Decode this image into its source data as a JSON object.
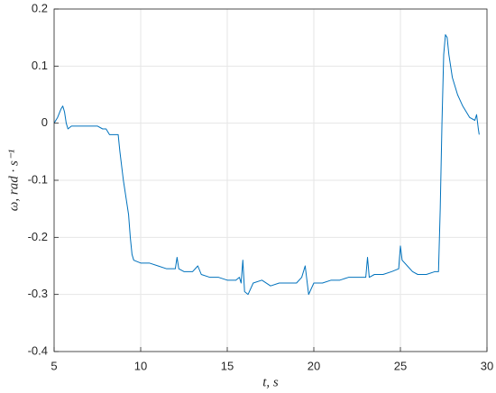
{
  "chart_data": {
    "type": "line",
    "x_label": "t, s",
    "y_label": "ω, rad · s⁻¹",
    "color": "#0072bd",
    "grid": true,
    "xlim": [
      5,
      30
    ],
    "xticks": [
      5,
      10,
      15,
      20,
      25,
      30
    ],
    "ylim": [
      -0.4,
      0.2
    ],
    "yticks": [
      -0.4,
      -0.3,
      -0.2,
      -0.1,
      0,
      0.1,
      0.2
    ],
    "x": [
      5.0,
      5.2,
      5.4,
      5.5,
      5.6,
      5.7,
      5.8,
      6.0,
      6.5,
      7.0,
      7.5,
      7.8,
      8.0,
      8.2,
      8.5,
      8.7,
      8.8,
      9.0,
      9.2,
      9.3,
      9.4,
      9.5,
      9.6,
      10.0,
      10.5,
      11.0,
      11.5,
      12.0,
      12.1,
      12.2,
      12.5,
      13.0,
      13.3,
      13.5,
      14.0,
      14.5,
      15.0,
      15.5,
      15.7,
      15.8,
      15.9,
      16.0,
      16.2,
      16.5,
      17.0,
      17.5,
      18.0,
      18.5,
      19.0,
      19.3,
      19.5,
      19.7,
      20.0,
      20.5,
      21.0,
      21.5,
      22.0,
      22.5,
      23.0,
      23.1,
      23.2,
      23.5,
      24.0,
      24.5,
      24.9,
      25.0,
      25.1,
      25.4,
      25.7,
      26.0,
      26.5,
      27.0,
      27.2,
      27.3,
      27.4,
      27.5,
      27.6,
      27.7,
      27.8,
      28.0,
      28.3,
      28.6,
      29.0,
      29.3,
      29.4,
      29.5,
      29.55
    ],
    "values": [
      0.0,
      0.01,
      0.025,
      0.03,
      0.02,
      0.0,
      -0.01,
      -0.005,
      -0.005,
      -0.005,
      -0.005,
      -0.01,
      -0.01,
      -0.02,
      -0.02,
      -0.02,
      -0.05,
      -0.1,
      -0.14,
      -0.16,
      -0.2,
      -0.23,
      -0.24,
      -0.245,
      -0.245,
      -0.25,
      -0.255,
      -0.255,
      -0.235,
      -0.255,
      -0.26,
      -0.26,
      -0.25,
      -0.265,
      -0.27,
      -0.27,
      -0.275,
      -0.275,
      -0.27,
      -0.28,
      -0.24,
      -0.295,
      -0.3,
      -0.28,
      -0.275,
      -0.285,
      -0.28,
      -0.28,
      -0.28,
      -0.27,
      -0.25,
      -0.3,
      -0.28,
      -0.28,
      -0.275,
      -0.275,
      -0.27,
      -0.27,
      -0.27,
      -0.235,
      -0.27,
      -0.265,
      -0.265,
      -0.26,
      -0.255,
      -0.215,
      -0.24,
      -0.25,
      -0.26,
      -0.265,
      -0.265,
      -0.26,
      -0.26,
      -0.15,
      0.0,
      0.12,
      0.155,
      0.15,
      0.12,
      0.08,
      0.05,
      0.03,
      0.01,
      0.005,
      0.015,
      -0.01,
      -0.02
    ]
  }
}
